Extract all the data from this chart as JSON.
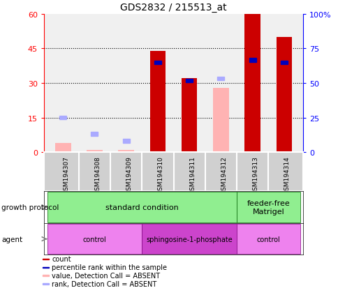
{
  "title": "GDS2832 / 215513_at",
  "samples": [
    "GSM194307",
    "GSM194308",
    "GSM194309",
    "GSM194310",
    "GSM194311",
    "GSM194312",
    "GSM194313",
    "GSM194314"
  ],
  "count_values": [
    null,
    null,
    null,
    44,
    32,
    null,
    60,
    50
  ],
  "count_absent_values": [
    4,
    1,
    1,
    null,
    null,
    28,
    null,
    null
  ],
  "rank_present_values": [
    null,
    null,
    null,
    39,
    31,
    null,
    40,
    39
  ],
  "rank_absent_values": [
    15,
    8,
    5,
    null,
    null,
    32,
    null,
    null
  ],
  "left_ylim": [
    0,
    60
  ],
  "right_ylim": [
    0,
    100
  ],
  "left_yticks": [
    0,
    15,
    30,
    45,
    60
  ],
  "right_yticks": [
    0,
    25,
    50,
    75,
    100
  ],
  "right_yticklabels": [
    "0",
    "25",
    "50",
    "75",
    "100%"
  ],
  "count_color": "#cc0000",
  "count_absent_color": "#ffb3b3",
  "rank_present_color": "#0000bb",
  "rank_absent_color": "#aaaaff",
  "plot_bg": "#f0f0f0",
  "label_bg": "#d0d0d0",
  "gp_color": "#90ee90",
  "agent_control_color": "#ee82ee",
  "agent_sphingo_color": "#cc44cc",
  "legend_items": [
    {
      "label": "count",
      "color": "#cc0000"
    },
    {
      "label": "percentile rank within the sample",
      "color": "#0000bb"
    },
    {
      "label": "value, Detection Call = ABSENT",
      "color": "#ffb3b3"
    },
    {
      "label": "rank, Detection Call = ABSENT",
      "color": "#aaaaff"
    }
  ]
}
